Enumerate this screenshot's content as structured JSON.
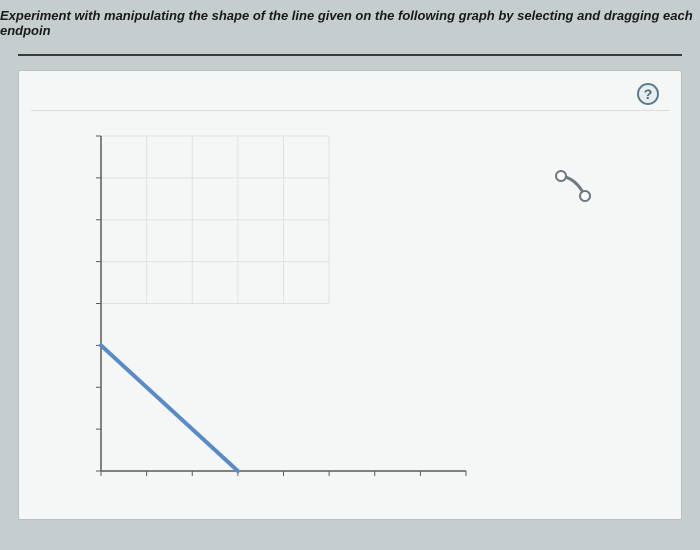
{
  "instruction": "Experiment with manipulating the shape of the line given on the following graph by selecting and dragging each endpoin",
  "help_label": "?",
  "graph": {
    "type": "line",
    "background_color": "#f5f7f7",
    "grid_color": "#dde3e4",
    "axis_color": "#5a5a5a",
    "xlim": [
      0,
      8
    ],
    "ylim": [
      0,
      8
    ],
    "xtick_step": 1,
    "ytick_step": 1,
    "grid_visible_cols": 5,
    "grid_visible_rows": 4,
    "line": {
      "x1": 0,
      "y1": 3,
      "x2": 3,
      "y2": 0,
      "color": "#5a8bc4",
      "width": 4
    }
  },
  "legend_tool": {
    "handle_color": "#6b7a85",
    "fill_color": "#ffffff",
    "marker_radius": 5,
    "curve_width": 3
  },
  "colors": {
    "page_bg": "#c5cdce",
    "panel_bg": "#f5f7f7",
    "panel_border": "#b8c0c1",
    "divider": "#3a3a3a",
    "help_border": "#5b7a8a",
    "help_text": "#4a6978"
  }
}
